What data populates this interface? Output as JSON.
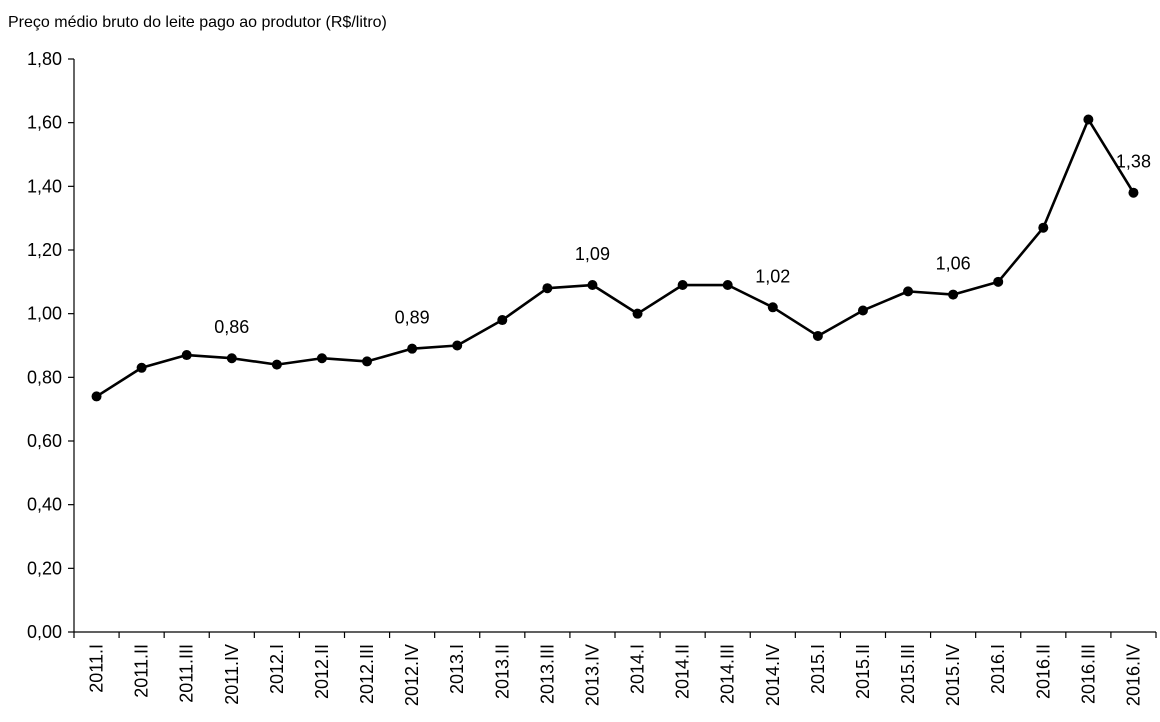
{
  "chart_data": {
    "type": "line",
    "title": "Preço médio bruto do leite pago ao produtor (R$/litro)",
    "xlabel": "",
    "ylabel": "",
    "ylim": [
      0,
      1.8
    ],
    "yticks": [
      "0,00",
      "0,20",
      "0,40",
      "0,60",
      "0,80",
      "1,00",
      "1,20",
      "1,40",
      "1,60",
      "1,80"
    ],
    "categories": [
      "2011.I",
      "2011.II",
      "2011.III",
      "2011.IV",
      "2012.I",
      "2012.II",
      "2012.III",
      "2012.IV",
      "2013.I",
      "2013.II",
      "2013.III",
      "2013.IV",
      "2014.I",
      "2014.II",
      "2014.III",
      "2014.IV",
      "2015.I",
      "2015.II",
      "2015.III",
      "2015.IV",
      "2016.I",
      "2016.II",
      "2016.III",
      "2016.IV"
    ],
    "series": [
      {
        "values": [
          0.74,
          0.83,
          0.87,
          0.86,
          0.84,
          0.86,
          0.85,
          0.89,
          0.9,
          0.98,
          1.08,
          1.09,
          1.0,
          1.09,
          1.09,
          1.02,
          0.93,
          1.01,
          1.07,
          1.06,
          1.1,
          1.27,
          1.61,
          1.38
        ],
        "color": "#000000"
      }
    ],
    "data_labels": [
      {
        "index": 3,
        "text": "0,86"
      },
      {
        "index": 7,
        "text": "0,89"
      },
      {
        "index": 11,
        "text": "1,09"
      },
      {
        "index": 15,
        "text": "1,02"
      },
      {
        "index": 19,
        "text": "1,06"
      },
      {
        "index": 23,
        "text": "1,38"
      }
    ],
    "grid": false,
    "legend": "none"
  }
}
